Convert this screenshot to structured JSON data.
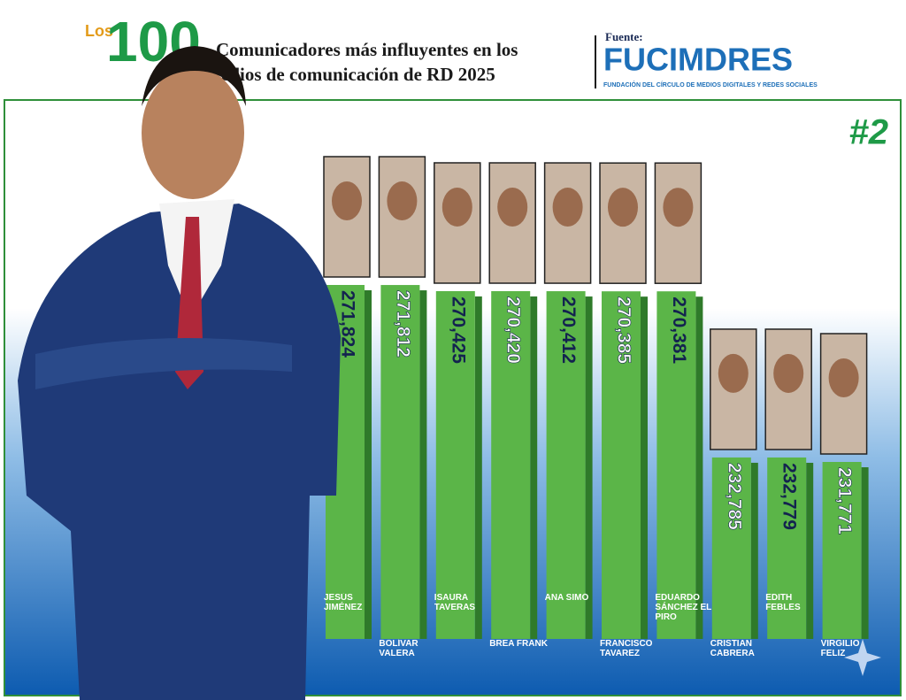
{
  "header": {
    "logo_prefix": "Los",
    "logo_number": "100",
    "title_line1": "Comunicadores más influyentes en los",
    "title_line2": "edios de comunicación de RD 2025",
    "source_label": "Fuente:",
    "source_name": "FUCIMDRES",
    "source_subtitle": "FUNDACIÓN DEL CÍRCULO DE MEDIOS DIGITALES Y REDES SOCIALES"
  },
  "chart_data": {
    "type": "bar",
    "badge": "#2",
    "color": "#5bb548",
    "categories": [
      "JESÚS JIMÉNEZ",
      "BOLÍVAR VALERA",
      "ISAURA TAVERAS",
      "BREA FRANK",
      "ANA SIMÓ",
      "FRANCISCO TAVAREZ",
      "EDUARDO SÁNCHEZ EL PIRO",
      "CRISTIAN CABRERA",
      "EDITH FEBLES",
      "VIRGILIO FELIZ"
    ],
    "values": [
      271824,
      271812,
      270425,
      270420,
      270412,
      270385,
      270381,
      232785,
      232779,
      231771
    ],
    "value_labels": [
      "271,824",
      "271,812",
      "270,425",
      "270,420",
      "270,412",
      "270,385",
      "270,381",
      "232,785",
      "232,779",
      "231,771"
    ]
  }
}
